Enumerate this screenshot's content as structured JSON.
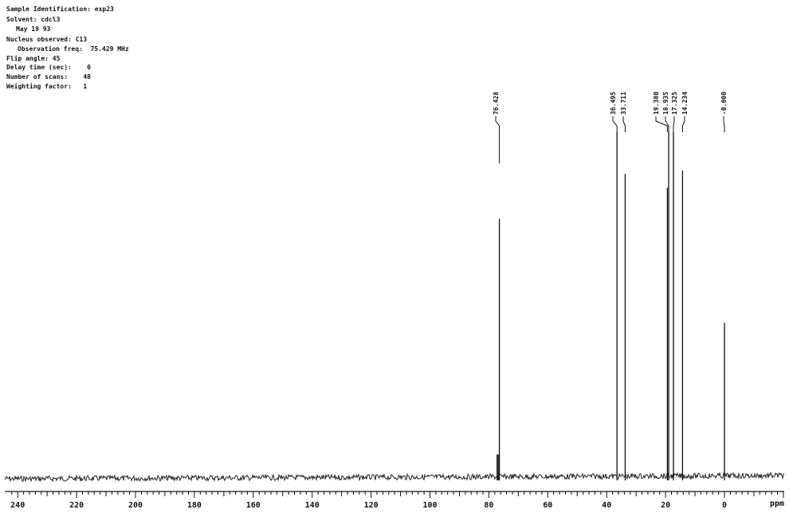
{
  "header": {
    "sample": "Sample Identification: exp23",
    "solvent": "Solvent: cdcl3",
    "date": "May 19 93",
    "nucleus": "Nucleus observed: C13",
    "freq": "Observation freq:  75.429 MHz",
    "flip": "Flip angle: 45",
    "delay": "Delay time (sec):    0",
    "scans": "Number of scans:    48",
    "weighting": "Weighting factor:   1"
  },
  "chart_data": {
    "type": "line",
    "title": "",
    "xlabel": "ppm",
    "ylabel": "",
    "x_reversed": true,
    "xlim": [
      242,
      -20
    ],
    "x_ticks": [
      240,
      220,
      200,
      180,
      160,
      140,
      120,
      100,
      80,
      60,
      40,
      20,
      0
    ],
    "grid": false,
    "peaks": [
      {
        "ppm": 77.2,
        "label": "",
        "height": 0.07
      },
      {
        "ppm": 76.8,
        "label": "",
        "height": 0.07
      },
      {
        "ppm": 76.428,
        "label": "76.428",
        "height": 0.75
      },
      {
        "ppm": 36.495,
        "label": "36.495",
        "height": 1.0
      },
      {
        "ppm": 33.711,
        "label": "33.711",
        "height": 0.88
      },
      {
        "ppm": 19.38,
        "label": "19.380",
        "height": 0.84
      },
      {
        "ppm": 18.935,
        "label": "18.935",
        "height": 1.0
      },
      {
        "ppm": 17.325,
        "label": "17.325",
        "height": 1.0
      },
      {
        "ppm": 14.234,
        "label": "14.234",
        "height": 0.89
      },
      {
        "ppm": -0.0,
        "label": "-0.000",
        "height": 0.45
      }
    ]
  }
}
